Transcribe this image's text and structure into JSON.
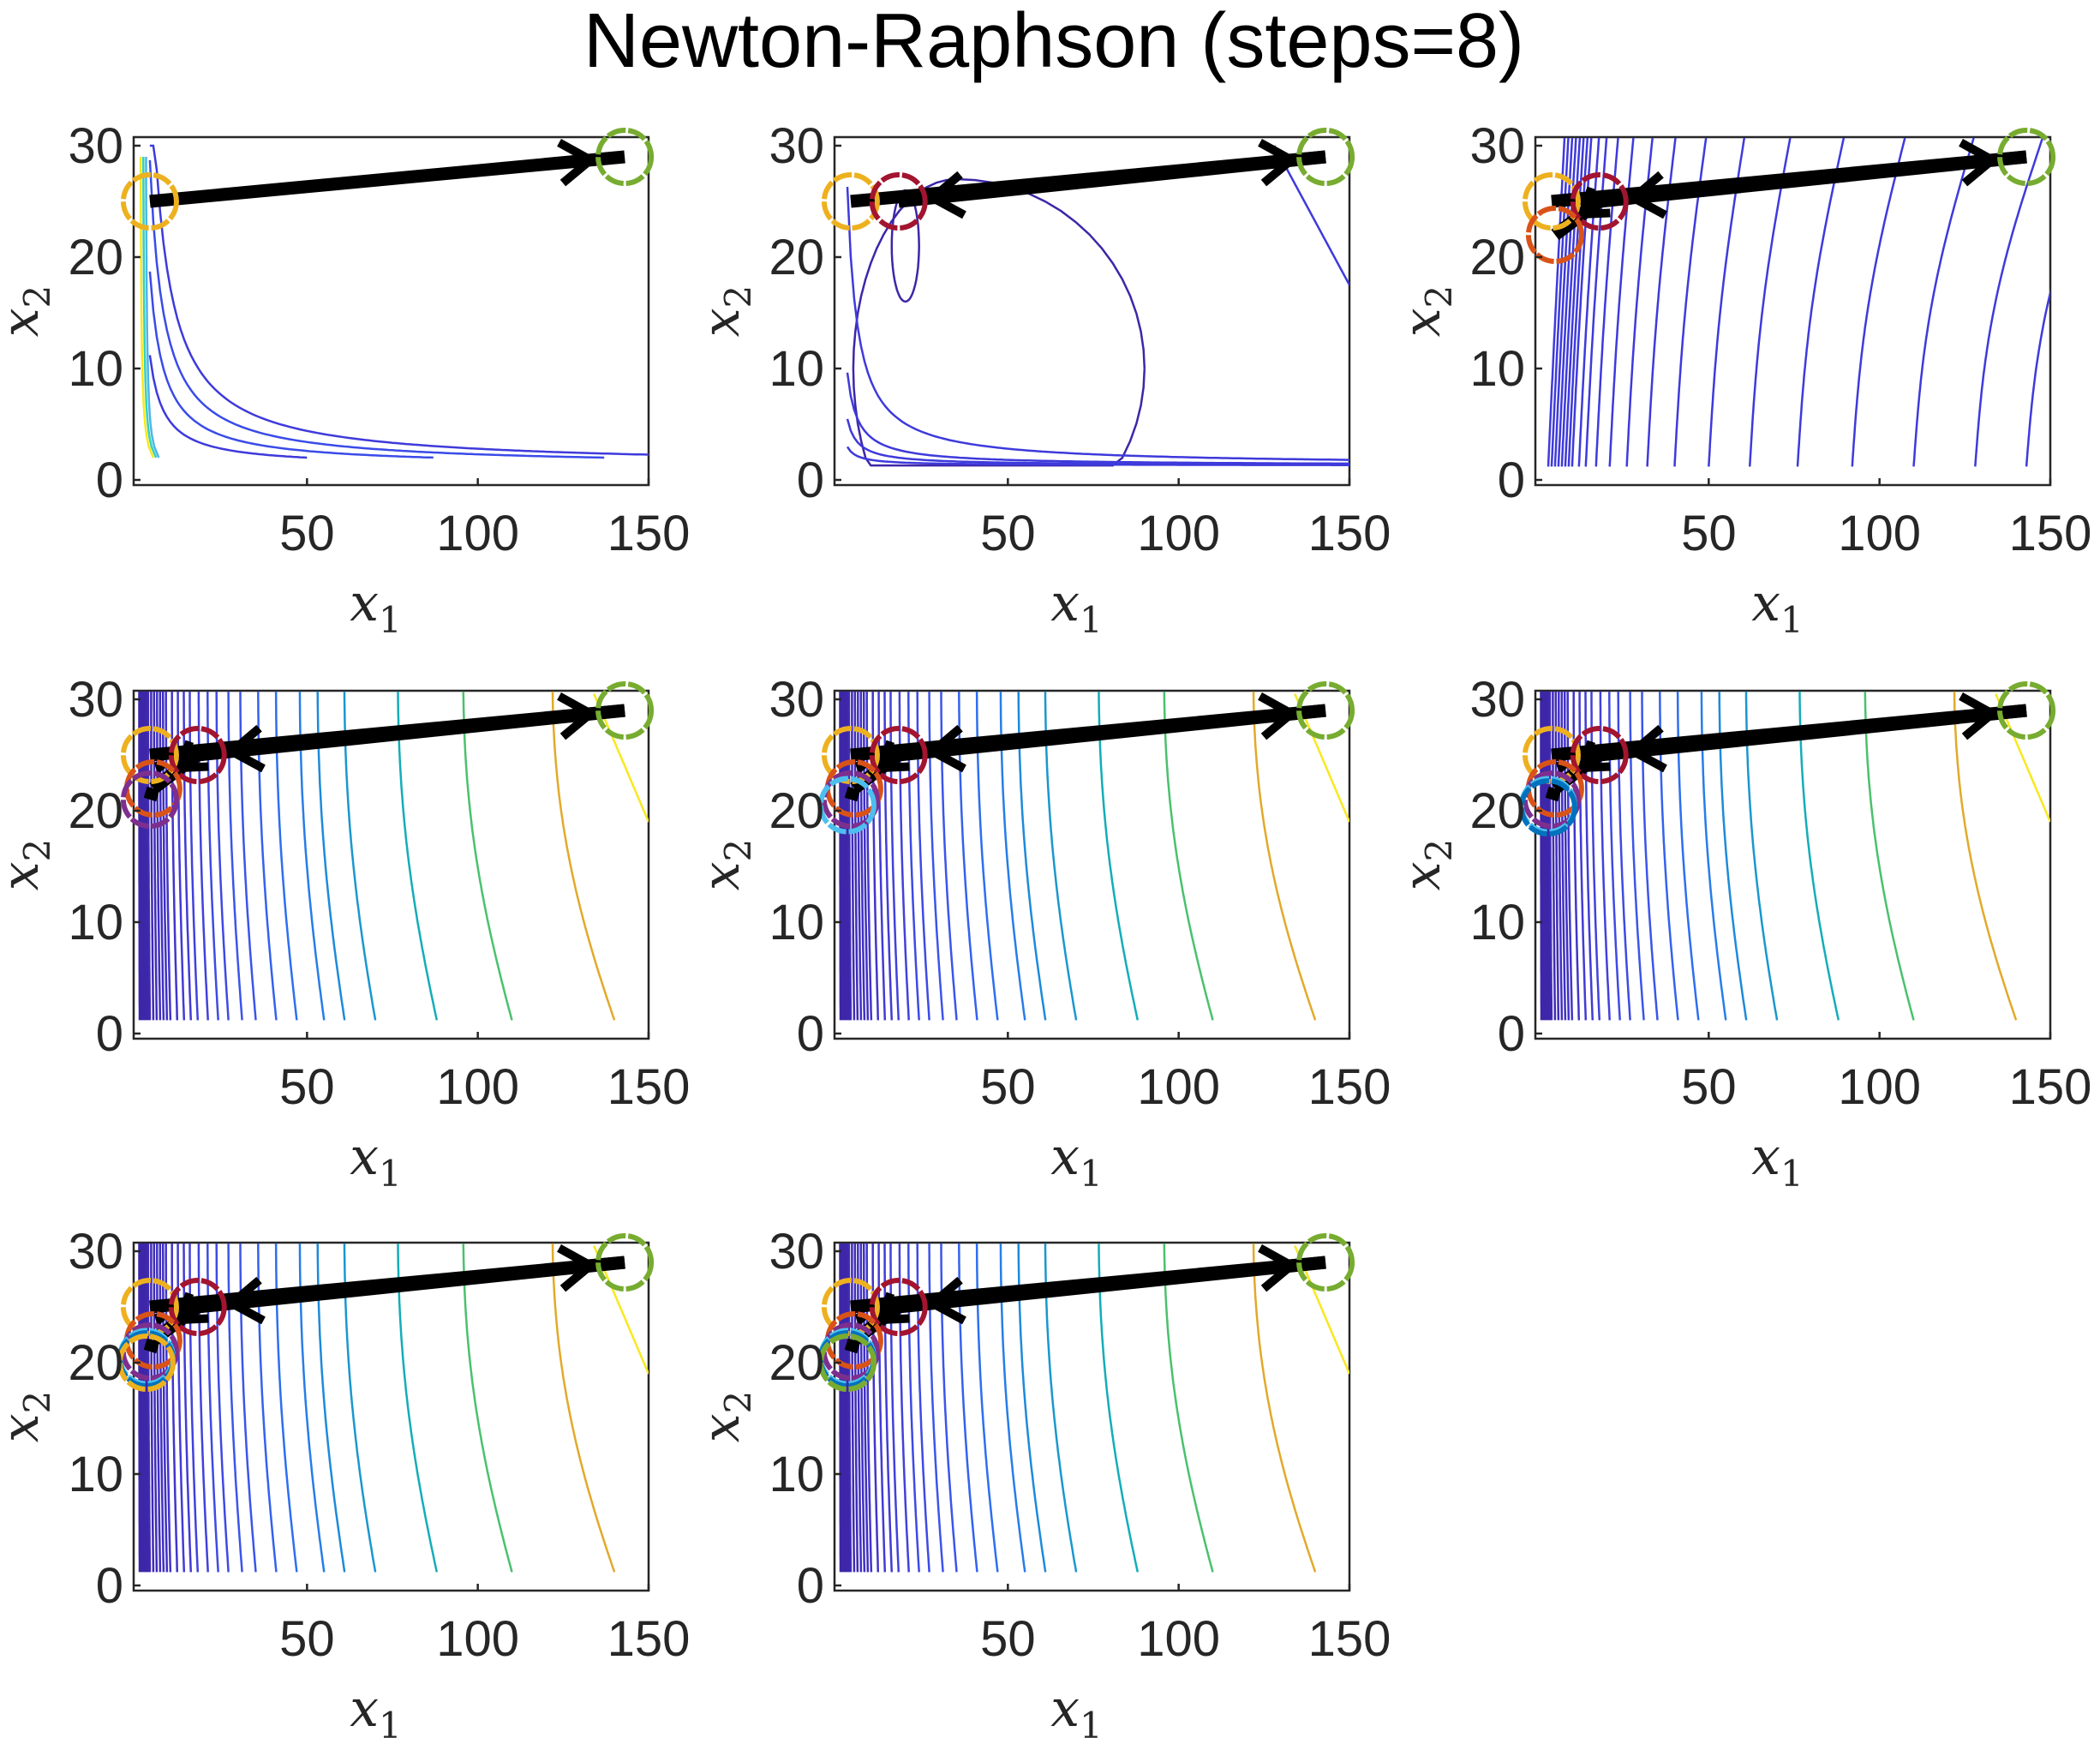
{
  "figure": {
    "title": "Newton-Raphson (steps=8)"
  },
  "chart_data": {
    "type": "contour",
    "xlabel": "x_1",
    "ylabel": "x_2",
    "xlim": [
      0,
      150
    ],
    "ylim": [
      0,
      30
    ],
    "xticks": [
      50,
      100,
      150
    ],
    "yticks": [
      0,
      10,
      20,
      30
    ],
    "grid": false,
    "panels": [
      {
        "step": 1,
        "iterates": [
          {
            "x": 4,
            "y": 25,
            "color": "#EDB120"
          },
          {
            "x": 143,
            "y": 29,
            "color": "#77AC30"
          }
        ],
        "arrows": [
          {
            "from": [
              4,
              25
            ],
            "to": [
              143,
              29
            ]
          }
        ]
      },
      {
        "step": 2,
        "iterates": [
          {
            "x": 4,
            "y": 25,
            "color": "#EDB120"
          },
          {
            "x": 143,
            "y": 29,
            "color": "#77AC30"
          },
          {
            "x": 18,
            "y": 25,
            "color": "#A2142F"
          }
        ],
        "arrows": [
          {
            "from": [
              4,
              25
            ],
            "to": [
              143,
              29
            ]
          },
          {
            "from": [
              143,
              29
            ],
            "to": [
              18,
              25
            ]
          }
        ]
      },
      {
        "step": 3,
        "iterates": [
          {
            "x": 4,
            "y": 25,
            "color": "#EDB120"
          },
          {
            "x": 143,
            "y": 29,
            "color": "#77AC30"
          },
          {
            "x": 18,
            "y": 25,
            "color": "#A2142F"
          },
          {
            "x": 5,
            "y": 22,
            "color": "#D95319"
          }
        ],
        "arrows": [
          {
            "from": [
              4,
              25
            ],
            "to": [
              143,
              29
            ]
          },
          {
            "from": [
              143,
              29
            ],
            "to": [
              18,
              25
            ]
          },
          {
            "from": [
              18,
              25
            ],
            "to": [
              5,
              22
            ]
          }
        ]
      },
      {
        "step": 4,
        "iterates": [
          {
            "x": 4,
            "y": 25,
            "color": "#EDB120"
          },
          {
            "x": 143,
            "y": 29,
            "color": "#77AC30"
          },
          {
            "x": 18,
            "y": 25,
            "color": "#A2142F"
          },
          {
            "x": 5,
            "y": 22,
            "color": "#D95319"
          },
          {
            "x": 4,
            "y": 21,
            "color": "#7E2F8E"
          }
        ],
        "arrows": [
          {
            "from": [
              4,
              25
            ],
            "to": [
              143,
              29
            ]
          },
          {
            "from": [
              143,
              29
            ],
            "to": [
              18,
              25
            ]
          },
          {
            "from": [
              18,
              25
            ],
            "to": [
              5,
              22
            ]
          },
          {
            "from": [
              5,
              22
            ],
            "to": [
              4,
              21
            ]
          }
        ]
      },
      {
        "step": 5,
        "iterates": [
          {
            "x": 4,
            "y": 25,
            "color": "#EDB120"
          },
          {
            "x": 143,
            "y": 29,
            "color": "#77AC30"
          },
          {
            "x": 18,
            "y": 25,
            "color": "#A2142F"
          },
          {
            "x": 5,
            "y": 22,
            "color": "#D95319"
          },
          {
            "x": 4,
            "y": 21,
            "color": "#7E2F8E"
          },
          {
            "x": 3,
            "y": 20.5,
            "color": "#4DBEEE"
          }
        ],
        "arrows": [
          {
            "from": [
              4,
              25
            ],
            "to": [
              143,
              29
            ]
          },
          {
            "from": [
              143,
              29
            ],
            "to": [
              18,
              25
            ]
          },
          {
            "from": [
              18,
              25
            ],
            "to": [
              5,
              22
            ]
          },
          {
            "from": [
              5,
              22
            ],
            "to": [
              4,
              21
            ]
          }
        ]
      },
      {
        "step": 6,
        "iterates": [
          {
            "x": 4,
            "y": 25,
            "color": "#EDB120"
          },
          {
            "x": 143,
            "y": 29,
            "color": "#77AC30"
          },
          {
            "x": 18,
            "y": 25,
            "color": "#A2142F"
          },
          {
            "x": 5,
            "y": 22,
            "color": "#D95319"
          },
          {
            "x": 4,
            "y": 21,
            "color": "#7E2F8E"
          },
          {
            "x": 3,
            "y": 20.5,
            "color": "#4DBEEE"
          },
          {
            "x": 3,
            "y": 20.3,
            "color": "#0072BD"
          }
        ],
        "arrows": [
          {
            "from": [
              4,
              25
            ],
            "to": [
              143,
              29
            ]
          },
          {
            "from": [
              143,
              29
            ],
            "to": [
              18,
              25
            ]
          },
          {
            "from": [
              18,
              25
            ],
            "to": [
              5,
              22
            ]
          },
          {
            "from": [
              5,
              22
            ],
            "to": [
              4,
              21
            ]
          }
        ]
      },
      {
        "step": 7,
        "iterates": [
          {
            "x": 4,
            "y": 25,
            "color": "#EDB120"
          },
          {
            "x": 143,
            "y": 29,
            "color": "#77AC30"
          },
          {
            "x": 18,
            "y": 25,
            "color": "#A2142F"
          },
          {
            "x": 5,
            "y": 22,
            "color": "#D95319"
          },
          {
            "x": 4,
            "y": 21,
            "color": "#7E2F8E"
          },
          {
            "x": 3,
            "y": 20.5,
            "color": "#4DBEEE"
          },
          {
            "x": 3,
            "y": 20.3,
            "color": "#0072BD"
          },
          {
            "x": 3,
            "y": 20,
            "color": "#EDB120"
          }
        ],
        "arrows": [
          {
            "from": [
              4,
              25
            ],
            "to": [
              143,
              29
            ]
          },
          {
            "from": [
              143,
              29
            ],
            "to": [
              18,
              25
            ]
          },
          {
            "from": [
              18,
              25
            ],
            "to": [
              5,
              22
            ]
          },
          {
            "from": [
              5,
              22
            ],
            "to": [
              4,
              21
            ]
          }
        ]
      },
      {
        "step": 8,
        "iterates": [
          {
            "x": 4,
            "y": 25,
            "color": "#EDB120"
          },
          {
            "x": 143,
            "y": 29,
            "color": "#77AC30"
          },
          {
            "x": 18,
            "y": 25,
            "color": "#A2142F"
          },
          {
            "x": 5,
            "y": 22,
            "color": "#D95319"
          },
          {
            "x": 4,
            "y": 21,
            "color": "#7E2F8E"
          },
          {
            "x": 3,
            "y": 20.5,
            "color": "#4DBEEE"
          },
          {
            "x": 3,
            "y": 20.3,
            "color": "#0072BD"
          },
          {
            "x": 3,
            "y": 20,
            "color": "#EDB120"
          },
          {
            "x": 3,
            "y": 20,
            "color": "#77AC30"
          }
        ],
        "arrows": [
          {
            "from": [
              4,
              25
            ],
            "to": [
              143,
              29
            ]
          },
          {
            "from": [
              143,
              29
            ],
            "to": [
              18,
              25
            ]
          },
          {
            "from": [
              18,
              25
            ],
            "to": [
              5,
              22
            ]
          },
          {
            "from": [
              5,
              22
            ],
            "to": [
              4,
              21
            ]
          }
        ]
      }
    ],
    "contours": {
      "type_a": {
        "panels": [
          1
        ],
        "lines": [
          {
            "k": 40,
            "color": "#3E3ADB"
          },
          {
            "k": 70,
            "color": "#3A4BE8"
          },
          {
            "k": 110,
            "color": "#3A4BE8"
          },
          {
            "k": 160,
            "color": "#3E3ADB"
          }
        ]
      },
      "type_b": {
        "panels": [
          3
        ],
        "x_at_bottom": [
          3,
          4,
          5,
          6,
          7,
          8,
          9,
          10,
          12,
          14,
          17,
          21,
          26,
          32,
          40,
          50,
          62,
          76,
          92,
          110,
          128,
          143
        ],
        "color": "#3E3ADB"
      },
      "type_c": {
        "panels": [
          4,
          5,
          6,
          7,
          8
        ],
        "lines": [
          {
            "x": 1,
            "color": "#3E26A8"
          },
          {
            "x": 1.5,
            "color": "#3E26A8"
          },
          {
            "x": 2,
            "color": "#3E26A8"
          },
          {
            "x": 2.5,
            "color": "#3E26A8"
          },
          {
            "x": 3,
            "color": "#3E26A8"
          },
          {
            "x": 3.5,
            "color": "#3E26A8"
          },
          {
            "x": 4,
            "color": "#3F2BB5"
          },
          {
            "x": 5,
            "color": "#3F2BB5"
          },
          {
            "x": 6,
            "color": "#3F2BB5"
          },
          {
            "x": 7,
            "color": "#4030C2"
          },
          {
            "x": 8,
            "color": "#4030C2"
          },
          {
            "x": 9,
            "color": "#4030C2"
          },
          {
            "x": 10,
            "color": "#4135CA"
          },
          {
            "x": 12,
            "color": "#4135CA"
          },
          {
            "x": 14,
            "color": "#423BD4"
          },
          {
            "x": 16,
            "color": "#423BD4"
          },
          {
            "x": 18,
            "color": "#4141DC"
          },
          {
            "x": 21,
            "color": "#4141DC"
          },
          {
            "x": 24,
            "color": "#3F4AE3"
          },
          {
            "x": 27,
            "color": "#3F4AE3"
          },
          {
            "x": 31,
            "color": "#3C55E9"
          },
          {
            "x": 35,
            "color": "#3C55E9"
          },
          {
            "x": 41,
            "color": "#3462EE"
          },
          {
            "x": 47,
            "color": "#2D6FF0"
          },
          {
            "x": 55,
            "color": "#277DE8"
          },
          {
            "x": 61,
            "color": "#1E8AD9"
          },
          {
            "x": 70,
            "color": "#1A97CE"
          },
          {
            "x": 88,
            "color": "#13ADB8"
          },
          {
            "x": 110,
            "color": "#4AC16D"
          },
          {
            "x": 140,
            "color": "#E2A92A"
          }
        ],
        "top_right": {
          "x0": 134,
          "x1": 150,
          "y1": 19,
          "color": "#F9E81E"
        }
      }
    }
  }
}
